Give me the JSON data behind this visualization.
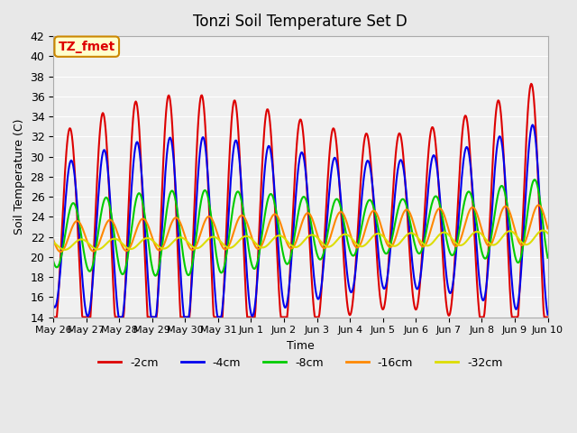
{
  "title": "Tonzi Soil Temperature Set D",
  "xlabel": "Time",
  "ylabel": "Soil Temperature (C)",
  "ylim": [
    14,
    42
  ],
  "yticks": [
    14,
    16,
    18,
    20,
    22,
    24,
    26,
    28,
    30,
    32,
    34,
    36,
    38,
    40,
    42
  ],
  "x_tick_labels": [
    "May 26",
    "May 27",
    "May 28",
    "May 29",
    "May 30",
    "May 31",
    "Jun 1",
    "Jun 2",
    "Jun 3",
    "Jun 4",
    "Jun 5",
    "Jun 6",
    "Jun 7",
    "Jun 8",
    "Jun 9",
    "Jun 10"
  ],
  "series_colors": [
    "#dd0000",
    "#0000ee",
    "#00cc00",
    "#ff8800",
    "#dddd00"
  ],
  "series_labels": [
    "-2cm",
    "-4cm",
    "-8cm",
    "-16cm",
    "-32cm"
  ],
  "annotation_text": "TZ_fmet",
  "annotation_color": "#dd0000",
  "annotation_bg": "#ffffcc",
  "annotation_border": "#cc8800",
  "bg_color": "#e8e8e8",
  "plot_bg_color": "#f0f0f0",
  "n_days": 15,
  "points_per_day": 48
}
